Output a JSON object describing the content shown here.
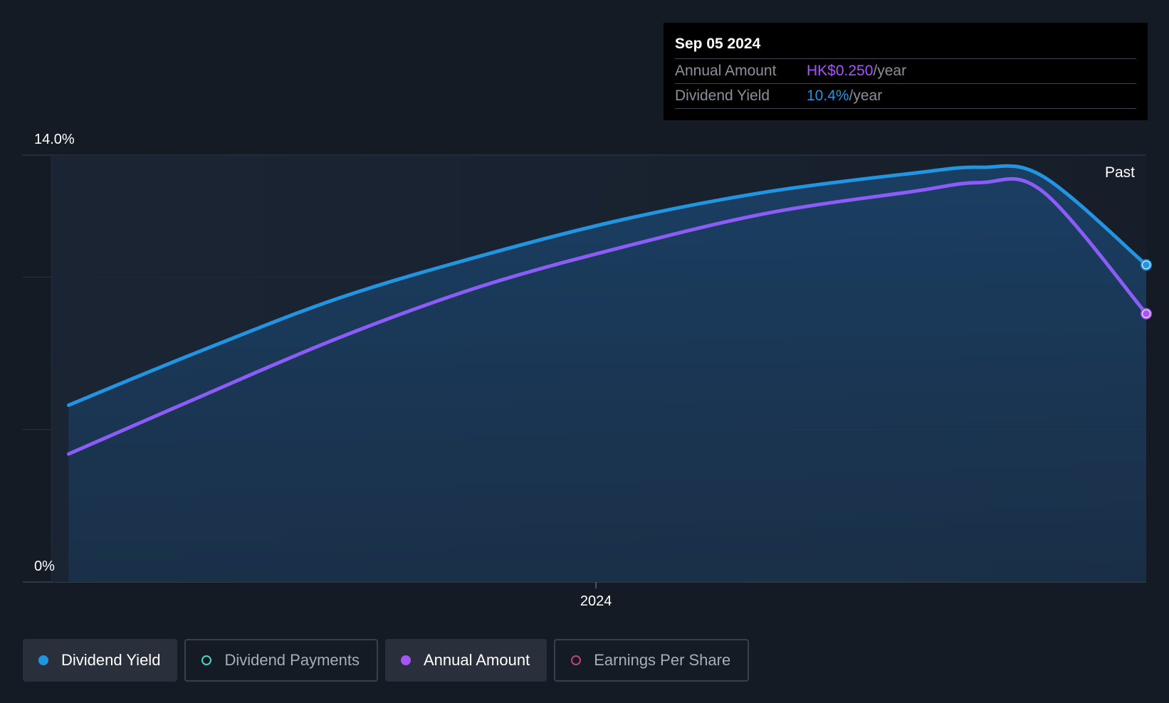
{
  "tooltip": {
    "date": "Sep 05 2024",
    "rows": [
      {
        "label": "Annual Amount",
        "value": "HK$0.250",
        "unit": "/year"
      },
      {
        "label": "Dividend Yield",
        "value": "10.4%",
        "unit": "/year"
      }
    ]
  },
  "legend": [
    {
      "label": "Dividend Yield",
      "active": true,
      "color": "#2394df"
    },
    {
      "label": "Dividend Payments",
      "active": false,
      "color": "#4fd1c5"
    },
    {
      "label": "Annual Amount",
      "active": true,
      "color": "#a855f7"
    },
    {
      "label": "Earnings Per Share",
      "active": false,
      "color": "#c2417a"
    }
  ],
  "colors": {
    "background": "#151b25",
    "yield": "#2394df",
    "annual": "#8b5cf6",
    "annual_marker": "#a855f7",
    "area": "#1a3d5e",
    "grid": "#2c3543",
    "text": "#ffffff"
  },
  "chart_data": {
    "type": "line",
    "title": "",
    "xlabel": "",
    "ylabel": "",
    "ylim": [
      0,
      14
    ],
    "y_tick_labels": [
      "14.0%",
      "0%"
    ],
    "x_ticks": [
      {
        "label": "2024",
        "x": 2024.0
      }
    ],
    "xlim": [
      2023.0,
      2024.96
    ],
    "past_label": "Past",
    "past_start_x": 2023.05,
    "series": [
      {
        "name": "Dividend Yield",
        "color": "#2394df",
        "x": [
          2023.08,
          2023.3,
          2023.55,
          2023.8,
          2024.05,
          2024.3,
          2024.55,
          2024.67,
          2024.78,
          2024.96
        ],
        "y": [
          5.8,
          7.5,
          9.3,
          10.7,
          11.9,
          12.8,
          13.4,
          13.6,
          13.3,
          10.4
        ]
      },
      {
        "name": "Annual Amount",
        "color": "#8b5cf6",
        "x": [
          2023.08,
          2023.3,
          2023.55,
          2023.8,
          2024.05,
          2024.3,
          2024.55,
          2024.67,
          2024.78,
          2024.96
        ],
        "y": [
          4.2,
          6.0,
          8.0,
          9.7,
          11.0,
          12.1,
          12.8,
          13.1,
          12.8,
          8.8
        ]
      }
    ]
  }
}
